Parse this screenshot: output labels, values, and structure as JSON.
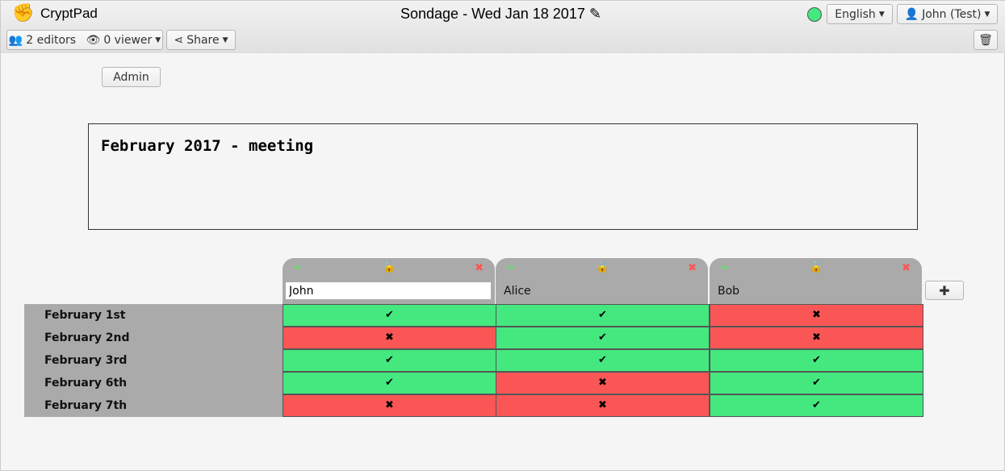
{
  "app": {
    "name": "CryptPad",
    "title": "Sondage - Wed Jan 18 2017",
    "status_color": "#44e87f"
  },
  "toolbar": {
    "editors": "2 editors",
    "viewers": "0 viewer",
    "share": "Share",
    "language": "English",
    "user": "John (Test)"
  },
  "admin_label": "Admin",
  "poll_title": "February 2017 - meeting",
  "columns": [
    {
      "name": "John",
      "locked": false,
      "editing": true
    },
    {
      "name": "Alice",
      "locked": true
    },
    {
      "name": "Bob",
      "locked": true
    }
  ],
  "rows": [
    "February 1st",
    "February 2nd",
    "February 3rd",
    "February 6th",
    "February 7th"
  ],
  "votes": [
    [
      true,
      true,
      false
    ],
    [
      false,
      true,
      false
    ],
    [
      true,
      true,
      true
    ],
    [
      true,
      false,
      true
    ],
    [
      false,
      false,
      true
    ]
  ],
  "colors": {
    "yes": "#44e87f",
    "no": "#fb5656"
  }
}
